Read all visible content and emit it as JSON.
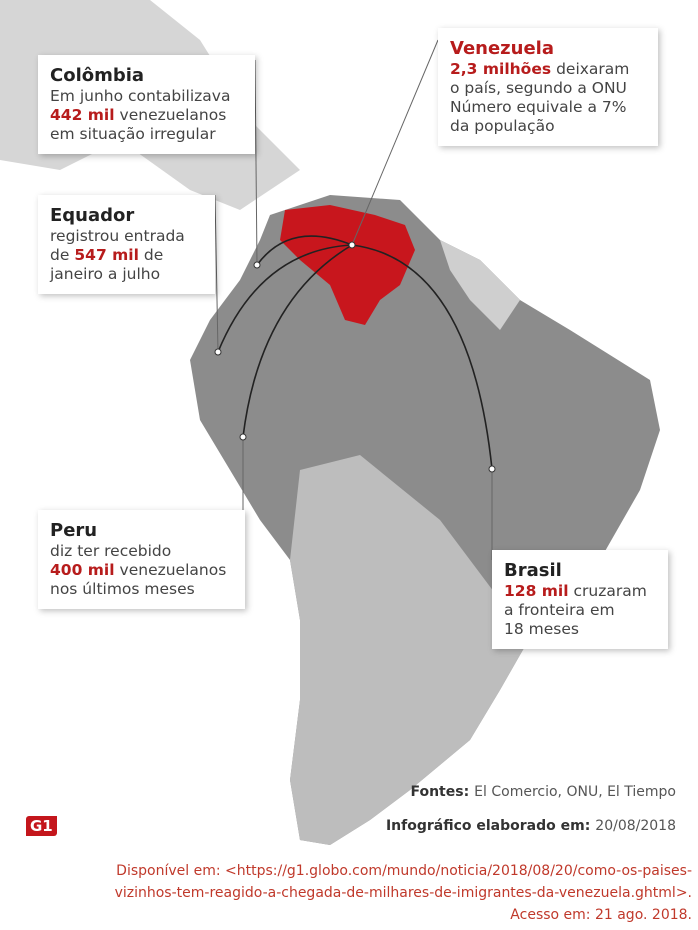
{
  "callouts": [
    {
      "title": "Colômbia",
      "lines": [
        [
          "Em junho contabilizava"
        ],
        [
          {
            "text": "442 mil",
            "strong": true
          },
          "venezuelanos"
        ],
        [
          "em situação irregular"
        ]
      ]
    },
    {
      "title": "Equador",
      "lines": [
        [
          "registrou entrada"
        ],
        [
          "de",
          {
            "text": "547 mil",
            "strong": true
          },
          "de"
        ],
        [
          "janeiro a julho"
        ]
      ]
    },
    {
      "title": "Venezuela",
      "lines": [
        [
          {
            "text": "2,3 milhões",
            "strong": true
          },
          "deixaram"
        ],
        [
          "o país, segundo a ONU"
        ],
        [
          "Número equivale a 7%"
        ],
        [
          "da população"
        ]
      ]
    },
    {
      "title": "Peru",
      "lines": [
        [
          "diz ter recebido"
        ],
        [
          {
            "text": "400 mil",
            "strong": true
          },
          "venezuelanos"
        ],
        [
          "nos últimos meses"
        ]
      ]
    },
    {
      "title": "Brasil",
      "lines": [
        [
          {
            "text": "128 mil",
            "strong": true
          },
          "cruzaram"
        ],
        [
          "a fronteira em"
        ],
        [
          "18 meses"
        ]
      ]
    }
  ],
  "footer": {
    "sources_label": "Fontes:",
    "sources": "El Comercio, ONU, El Tiempo",
    "credit_label": "Infográfico elaborado em:",
    "credit_date": "20/08/2018",
    "logo": "G1"
  },
  "citation": [
    "Disponível em: <https://g1.globo.com/mundo/noticia/2018/08/20/como-os-paises-",
    "vizinhos-tem-reagido-a-chegada-de-milhares-de-imigrantes-da-venezuela.ghtml>.",
    "Acesso em: 21 ago. 2018."
  ]
}
